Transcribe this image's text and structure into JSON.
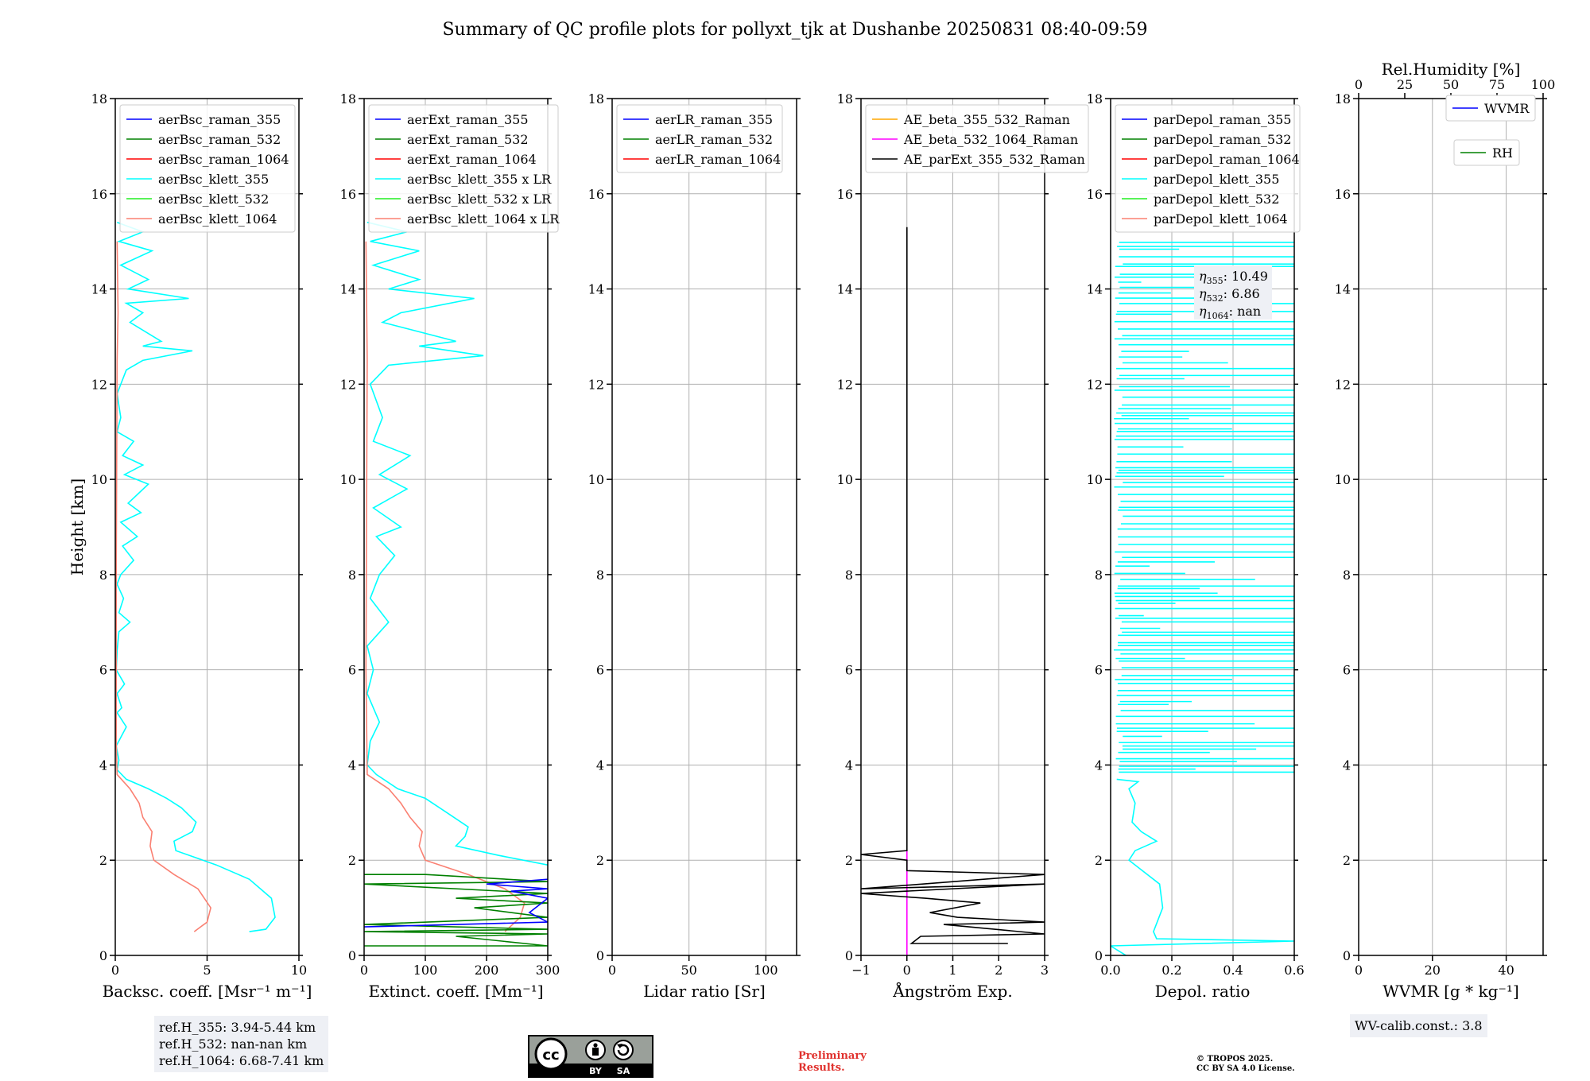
{
  "figure": {
    "title": "Summary of QC profile plots for pollyxt_tjk at Dushanbe 20250831 08:40-09:59"
  },
  "colors": {
    "blue": "#0000ff",
    "green": "#008000",
    "red": "#ff0000",
    "cyan": "#00ffff",
    "lime": "#22ee22",
    "salmon": "#fa8072",
    "orange": "#ffa500",
    "magenta": "#ff00ff",
    "black": "#000000"
  },
  "chart_data": [
    {
      "id": "backscatter",
      "type": "line",
      "xlabel": "Backsc. coeff. [Msr⁻¹ m⁻¹]",
      "ylabel": "Height [km]",
      "xlim": [
        0,
        10
      ],
      "ylim": [
        0,
        18
      ],
      "xticks": [
        "0",
        "5",
        "10"
      ],
      "yticks": [
        "0",
        "2",
        "4",
        "6",
        "8",
        "10",
        "12",
        "14",
        "16",
        "18"
      ],
      "legend": [
        "aerBsc_raman_355",
        "aerBsc_raman_532",
        "aerBsc_raman_1064",
        "aerBsc_klett_355",
        "aerBsc_klett_532",
        "aerBsc_klett_1064"
      ],
      "series": [
        {
          "name": "aerBsc_klett_355",
          "color": "cyan",
          "points": [
            [
              7.3,
              0.5
            ],
            [
              8.2,
              0.55
            ],
            [
              8.7,
              0.8
            ],
            [
              8.5,
              1.2
            ],
            [
              7.3,
              1.6
            ],
            [
              5.5,
              1.9
            ],
            [
              3.3,
              2.2
            ],
            [
              3.2,
              2.4
            ],
            [
              4.2,
              2.6
            ],
            [
              4.4,
              2.8
            ],
            [
              3.6,
              3.1
            ],
            [
              2.8,
              3.3
            ],
            [
              1.8,
              3.5
            ],
            [
              0.6,
              3.7
            ],
            [
              0.1,
              3.9
            ],
            [
              0.2,
              4.1
            ],
            [
              0.05,
              4.4
            ],
            [
              0.6,
              4.8
            ],
            [
              0.1,
              5.1
            ],
            [
              0.35,
              5.2
            ],
            [
              0.1,
              5.5
            ],
            [
              0.5,
              5.7
            ],
            [
              0.05,
              6.0
            ],
            [
              0.1,
              6.4
            ],
            [
              0.2,
              6.8
            ],
            [
              0.8,
              7.0
            ],
            [
              0.2,
              7.2
            ],
            [
              0.45,
              7.5
            ],
            [
              0.1,
              7.8
            ],
            [
              0.3,
              8.0
            ],
            [
              1.0,
              8.3
            ],
            [
              0.4,
              8.6
            ],
            [
              1.2,
              8.8
            ],
            [
              0.3,
              9.1
            ],
            [
              1.4,
              9.3
            ],
            [
              0.7,
              9.5
            ],
            [
              1.8,
              9.9
            ],
            [
              0.5,
              10.1
            ],
            [
              1.5,
              10.3
            ],
            [
              0.4,
              10.5
            ],
            [
              1.0,
              10.8
            ],
            [
              0.1,
              11.0
            ],
            [
              0.3,
              11.3
            ],
            [
              0.1,
              11.8
            ],
            [
              0.6,
              12.3
            ],
            [
              1.5,
              12.5
            ],
            [
              4.2,
              12.7
            ],
            [
              1.5,
              12.8
            ],
            [
              2.5,
              12.9
            ],
            [
              0.8,
              13.3
            ],
            [
              1.5,
              13.5
            ],
            [
              0.6,
              13.7
            ],
            [
              4.0,
              13.8
            ],
            [
              0.7,
              14.0
            ],
            [
              1.8,
              14.2
            ],
            [
              0.3,
              14.5
            ],
            [
              2.0,
              14.8
            ],
            [
              0.2,
              15.0
            ],
            [
              1.5,
              15.2
            ],
            [
              0.1,
              15.4
            ]
          ]
        },
        {
          "name": "aerBsc_klett_1064",
          "color": "salmon",
          "points": [
            [
              4.3,
              0.5
            ],
            [
              5.0,
              0.7
            ],
            [
              5.2,
              1.0
            ],
            [
              4.5,
              1.4
            ],
            [
              3.2,
              1.7
            ],
            [
              2.1,
              2.0
            ],
            [
              1.9,
              2.3
            ],
            [
              2.0,
              2.6
            ],
            [
              1.5,
              2.9
            ],
            [
              1.3,
              3.2
            ],
            [
              0.8,
              3.5
            ],
            [
              0.1,
              3.8
            ],
            [
              0.05,
              4.5
            ],
            [
              0.05,
              8.0
            ],
            [
              0.1,
              12.5
            ],
            [
              0.15,
              13.5
            ],
            [
              0.1,
              15.0
            ]
          ]
        }
      ],
      "notes": [
        "ref.H_355: 3.94-5.44 km",
        "ref.H_532: nan-nan km",
        "ref.H_1064: 6.68-7.41 km"
      ]
    },
    {
      "id": "extinction",
      "type": "line",
      "xlabel": "Extinct. coeff. [Mm⁻¹]",
      "xlim": [
        0,
        300
      ],
      "ylim": [
        0,
        18
      ],
      "xticks": [
        "0",
        "100",
        "200",
        "300"
      ],
      "yticks": [
        "0",
        "2",
        "4",
        "6",
        "8",
        "10",
        "12",
        "14",
        "16",
        "18"
      ],
      "legend": [
        "aerExt_raman_355",
        "aerExt_raman_532",
        "aerExt_raman_1064",
        "aerBsc_klett_355 x LR",
        "aerBsc_klett_532 x LR",
        "aerBsc_klett_1064 x LR"
      ],
      "series": [
        {
          "name": "aerBsc_klett_355 x LR",
          "color": "cyan",
          "points": [
            [
              300,
              1.9
            ],
            [
              220,
              2.1
            ],
            [
              150,
              2.3
            ],
            [
              165,
              2.5
            ],
            [
              170,
              2.7
            ],
            [
              135,
              3.0
            ],
            [
              100,
              3.3
            ],
            [
              55,
              3.5
            ],
            [
              20,
              3.8
            ],
            [
              5,
              4.0
            ],
            [
              10,
              4.5
            ],
            [
              25,
              4.9
            ],
            [
              5,
              5.5
            ],
            [
              15,
              6.0
            ],
            [
              5,
              6.5
            ],
            [
              40,
              7.0
            ],
            [
              10,
              7.5
            ],
            [
              25,
              8.0
            ],
            [
              50,
              8.4
            ],
            [
              20,
              8.8
            ],
            [
              60,
              9.0
            ],
            [
              15,
              9.4
            ],
            [
              70,
              9.8
            ],
            [
              25,
              10.1
            ],
            [
              75,
              10.5
            ],
            [
              15,
              10.8
            ],
            [
              30,
              11.3
            ],
            [
              10,
              12.0
            ],
            [
              40,
              12.4
            ],
            [
              195,
              12.6
            ],
            [
              90,
              12.8
            ],
            [
              150,
              12.9
            ],
            [
              30,
              13.3
            ],
            [
              60,
              13.5
            ],
            [
              180,
              13.8
            ],
            [
              40,
              14.0
            ],
            [
              90,
              14.2
            ],
            [
              15,
              14.5
            ],
            [
              90,
              14.8
            ],
            [
              10,
              15.0
            ],
            [
              70,
              15.2
            ],
            [
              5,
              15.4
            ]
          ]
        },
        {
          "name": "aerBsc_klett_1064 x LR",
          "color": "salmon",
          "points": [
            [
              230,
              0.5
            ],
            [
              255,
              0.8
            ],
            [
              262,
              1.1
            ],
            [
              230,
              1.4
            ],
            [
              170,
              1.7
            ],
            [
              100,
              2.0
            ],
            [
              90,
              2.3
            ],
            [
              95,
              2.6
            ],
            [
              75,
              2.9
            ],
            [
              60,
              3.2
            ],
            [
              40,
              3.5
            ],
            [
              5,
              3.8
            ],
            [
              3,
              6.0
            ],
            [
              5,
              12.5
            ],
            [
              3,
              15.0
            ]
          ]
        },
        {
          "name": "aerExt_raman_532",
          "color": "green",
          "points": [
            [
              0,
              0.2
            ],
            [
              300,
              0.2
            ],
            [
              150,
              0.4
            ],
            [
              300,
              0.45
            ],
            [
              0,
              0.5
            ],
            [
              300,
              0.55
            ],
            [
              0,
              0.65
            ],
            [
              300,
              0.8
            ],
            [
              180,
              1.0
            ],
            [
              300,
              1.1
            ],
            [
              150,
              1.2
            ],
            [
              300,
              1.3
            ],
            [
              0,
              1.5
            ],
            [
              300,
              1.55
            ],
            [
              100,
              1.7
            ],
            [
              0,
              1.7
            ]
          ]
        },
        {
          "name": "aerExt_raman_355",
          "color": "blue",
          "points": [
            [
              0,
              0.6
            ],
            [
              300,
              0.7
            ],
            [
              270,
              0.9
            ],
            [
              300,
              1.2
            ],
            [
              240,
              1.35
            ],
            [
              300,
              1.4
            ],
            [
              200,
              1.5
            ],
            [
              300,
              1.6
            ]
          ]
        }
      ]
    },
    {
      "id": "lidar_ratio",
      "type": "line",
      "xlabel": "Lidar ratio [Sr]",
      "xlim": [
        0,
        120
      ],
      "ylim": [
        0,
        18
      ],
      "xticks": [
        "0",
        "50",
        "100"
      ],
      "yticks": [
        "0",
        "2",
        "4",
        "6",
        "8",
        "10",
        "12",
        "14",
        "16",
        "18"
      ],
      "legend": [
        "aerLR_raman_355",
        "aerLR_raman_532",
        "aerLR_raman_1064"
      ],
      "series": []
    },
    {
      "id": "angstrom",
      "type": "line",
      "xlabel": "Ångström Exp.",
      "xlim": [
        -1,
        3
      ],
      "ylim": [
        0,
        18
      ],
      "xticks": [
        "−1",
        "0",
        "1",
        "2",
        "3"
      ],
      "yticks": [
        "0",
        "2",
        "4",
        "6",
        "8",
        "10",
        "12",
        "14",
        "16",
        "18"
      ],
      "legend": [
        "AE_beta_355_532_Raman",
        "AE_beta_532_1064_Raman",
        "AE_parExt_355_532_Raman"
      ],
      "series": [
        {
          "name": "AE_beta_532_1064_Raman",
          "color": "magenta",
          "points": [
            [
              0,
              0.0
            ],
            [
              0,
              2.2
            ]
          ]
        },
        {
          "name": "AE_parExt_355_532_Raman",
          "color": "black",
          "points": [
            [
              2.2,
              0.25
            ],
            [
              0.1,
              0.25
            ],
            [
              0.3,
              0.4
            ],
            [
              3,
              0.45
            ],
            [
              0.8,
              0.65
            ],
            [
              3,
              0.7
            ],
            [
              1.1,
              0.8
            ],
            [
              0.5,
              0.9
            ],
            [
              1.6,
              1.1
            ],
            [
              0.4,
              1.2
            ],
            [
              -1,
              1.3
            ],
            [
              3,
              1.5
            ],
            [
              -1,
              1.4
            ],
            [
              -1,
              1.4
            ],
            [
              3,
              1.7
            ],
            [
              0,
              1.78
            ],
            [
              0,
              2.0
            ],
            [
              -1,
              2.12
            ],
            [
              0,
              2.2
            ],
            [
              0,
              15.3
            ]
          ]
        }
      ]
    },
    {
      "id": "depol",
      "type": "line",
      "xlabel": "Depol. ratio",
      "xlim": [
        0,
        0.6
      ],
      "ylim": [
        0,
        18
      ],
      "xticks": [
        "0.0",
        "0.2",
        "0.4",
        "0.6"
      ],
      "yticks": [
        "0",
        "2",
        "4",
        "6",
        "8",
        "10",
        "12",
        "14",
        "16",
        "18"
      ],
      "legend": [
        "parDepol_raman_355",
        "parDepol_raman_532",
        "parDepol_raman_1064",
        "parDepol_klett_355",
        "parDepol_klett_532",
        "parDepol_klett_1064"
      ],
      "series": [
        {
          "name": "parDepol_klett_355",
          "color": "cyan",
          "points": [
            [
              0.05,
              0.0
            ],
            [
              0.0,
              0.2
            ],
            [
              0.6,
              0.3
            ],
            [
              0.15,
              0.35
            ],
            [
              0.14,
              0.5
            ],
            [
              0.17,
              1.0
            ],
            [
              0.16,
              1.5
            ],
            [
              0.1,
              1.8
            ],
            [
              0.06,
              2.0
            ],
            [
              0.08,
              2.2
            ],
            [
              0.15,
              2.4
            ],
            [
              0.1,
              2.6
            ],
            [
              0.07,
              2.8
            ],
            [
              0.08,
              3.2
            ],
            [
              0.06,
              3.5
            ],
            [
              0.09,
              3.65
            ],
            [
              0.02,
              3.7
            ]
          ]
        }
      ],
      "bands_note": "cyan horizontal spikes to 0.6 between 3.8 and 15 km",
      "eta": [
        {
          "label": "η",
          "sub": "355",
          "value": "10.49"
        },
        {
          "label": "η",
          "sub": "532",
          "value": "6.86"
        },
        {
          "label": "η",
          "sub": "1064",
          "value": "nan"
        }
      ]
    },
    {
      "id": "wv",
      "type": "line",
      "xlabel": "WVMR",
      "xlabel_unit": "[g * kg⁻¹]",
      "toplabel": "Rel.Humidity [%]",
      "xlim": [
        0,
        50
      ],
      "ylim": [
        0,
        18
      ],
      "xticks": [
        "0",
        "20",
        "40"
      ],
      "topticks": [
        "0",
        "25",
        "50",
        "75",
        "100"
      ],
      "yticks": [
        "0",
        "2",
        "4",
        "6",
        "8",
        "10",
        "12",
        "14",
        "16",
        "18"
      ],
      "legend": [
        "WVMR",
        "RH"
      ],
      "series": [],
      "note": "WV-calib.const.: 3.8"
    }
  ],
  "footer": {
    "cc": "cc",
    "by": "BY",
    "sa": "SA",
    "prelim_1": "Preliminary",
    "prelim_2": "Results.",
    "copy_1": "© TROPOS 2025.",
    "copy_2": "CC BY SA 4.0 License."
  }
}
